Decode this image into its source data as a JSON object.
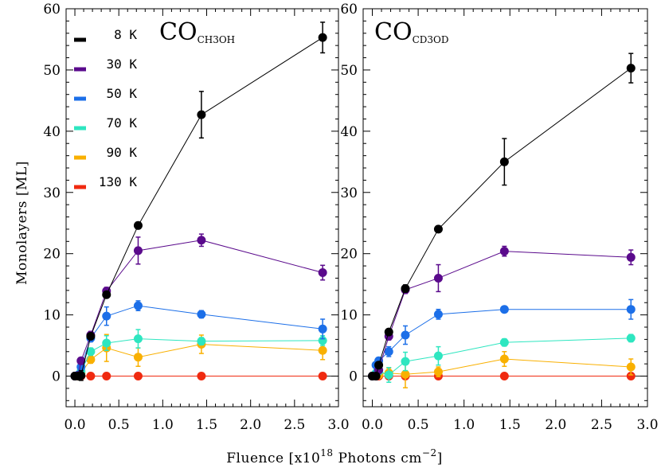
{
  "chart_data": [
    {
      "type": "line",
      "title": "CO",
      "title_subscript": "CH3OH",
      "xlabel": "Fluence [x10",
      "xlabel_sup": "18",
      "xlabel_after": " Photons cm",
      "xlabel_sup2": "−2",
      "xlabel_end": "]",
      "ylabel": "Monolayers [ML]",
      "xlim": [
        -0.1,
        3.0
      ],
      "ylim": [
        -5,
        60
      ],
      "xticks": [
        "0.0",
        "0.5",
        "1.0",
        "1.5",
        "2.0",
        "2.5",
        "3.0"
      ],
      "yticks": [
        "0",
        "10",
        "20",
        "30",
        "40",
        "50",
        "60"
      ],
      "legend_position": "top-left",
      "series": [
        {
          "name": "8 K",
          "color": "#000000",
          "x": [
            0.0,
            0.04,
            0.07,
            0.18,
            0.36,
            0.72,
            1.44,
            2.82
          ],
          "y": [
            0.0,
            0.0,
            0.1,
            6.5,
            13.3,
            24.6,
            42.7,
            55.3
          ],
          "err": [
            0.3,
            0.5,
            0.8,
            0.5,
            0.5,
            0.5,
            3.8,
            2.5
          ]
        },
        {
          "name": "30 K",
          "color": "#5a0a8c",
          "x": [
            0.0,
            0.04,
            0.07,
            0.18,
            0.36,
            0.72,
            1.44,
            2.82
          ],
          "y": [
            0.0,
            0.1,
            2.5,
            6.7,
            13.9,
            20.5,
            22.2,
            16.9
          ],
          "err": [
            0.3,
            0.3,
            0.5,
            0.6,
            0.6,
            2.2,
            1.0,
            1.2
          ]
        },
        {
          "name": "50 K",
          "color": "#1c6fe8",
          "x": [
            0.0,
            0.04,
            0.07,
            0.18,
            0.36,
            0.72,
            1.44,
            2.82
          ],
          "y": [
            0.0,
            0.2,
            1.5,
            6.2,
            9.8,
            11.5,
            10.1,
            7.7
          ],
          "err": [
            0.3,
            0.3,
            0.5,
            0.6,
            1.5,
            0.8,
            0.6,
            1.6
          ]
        },
        {
          "name": "70 K",
          "color": "#2ee6c0",
          "x": [
            0.0,
            0.04,
            0.07,
            0.18,
            0.36,
            0.72,
            1.44,
            2.82
          ],
          "y": [
            0.0,
            0.1,
            0.8,
            4.0,
            5.4,
            6.1,
            5.7,
            5.8
          ],
          "err": [
            0.3,
            0.3,
            0.5,
            0.6,
            1.2,
            1.5,
            0.6,
            0.8
          ]
        },
        {
          "name": "90 K",
          "color": "#f9b000",
          "x": [
            0.0,
            0.04,
            0.07,
            0.18,
            0.36,
            0.72,
            1.44,
            2.82
          ],
          "y": [
            0.0,
            0.0,
            0.5,
            2.7,
            4.6,
            3.1,
            5.2,
            4.2
          ],
          "err": [
            0.3,
            0.3,
            0.5,
            0.6,
            2.2,
            1.5,
            1.5,
            1.5
          ]
        },
        {
          "name": "130 K",
          "color": "#f02a10",
          "x": [
            0.0,
            0.04,
            0.07,
            0.18,
            0.36,
            0.72,
            1.44,
            2.82
          ],
          "y": [
            0.0,
            0.0,
            0.0,
            0.0,
            0.0,
            0.0,
            0.0,
            0.0
          ],
          "err": [
            0.2,
            0.2,
            0.2,
            0.2,
            0.2,
            0.2,
            0.2,
            0.2
          ]
        }
      ]
    },
    {
      "type": "line",
      "title": "CO",
      "title_subscript": "CD3OD",
      "xlim": [
        -0.1,
        3.0
      ],
      "ylim": [
        -5,
        60
      ],
      "xticks": [
        "0.0",
        "0.5",
        "1.0",
        "1.5",
        "2.0",
        "2.5",
        "3.0"
      ],
      "yticks": [
        "0",
        "10",
        "20",
        "30",
        "40",
        "50",
        "60"
      ],
      "series": [
        {
          "name": "8 K",
          "color": "#000000",
          "x": [
            0.0,
            0.04,
            0.07,
            0.18,
            0.36,
            0.72,
            1.44,
            2.82
          ],
          "y": [
            0.0,
            0.0,
            1.8,
            7.2,
            14.3,
            24.0,
            35.0,
            50.3
          ],
          "err": [
            0.3,
            0.3,
            0.5,
            0.5,
            0.6,
            0.5,
            3.8,
            2.4
          ]
        },
        {
          "name": "30 K",
          "color": "#5a0a8c",
          "x": [
            0.0,
            0.04,
            0.07,
            0.18,
            0.36,
            0.72,
            1.44,
            2.82
          ],
          "y": [
            0.0,
            0.0,
            1.0,
            6.5,
            14.1,
            16.0,
            20.4,
            19.4
          ],
          "err": [
            0.3,
            0.3,
            0.5,
            0.6,
            0.6,
            2.2,
            0.8,
            1.2
          ]
        },
        {
          "name": "50 K",
          "color": "#1c6fe8",
          "x": [
            0.0,
            0.04,
            0.07,
            0.18,
            0.36,
            0.72,
            1.44,
            2.82
          ],
          "y": [
            0.0,
            1.8,
            2.5,
            4.0,
            6.7,
            10.1,
            10.9,
            10.9
          ],
          "err": [
            0.3,
            0.4,
            0.5,
            0.8,
            1.5,
            0.8,
            0.5,
            1.6
          ]
        },
        {
          "name": "70 K",
          "color": "#2ee6c0",
          "x": [
            0.0,
            0.04,
            0.07,
            0.18,
            0.36,
            0.72,
            1.44,
            2.82
          ],
          "y": [
            0.0,
            0.5,
            0.8,
            0.2,
            2.4,
            3.3,
            5.5,
            6.2
          ],
          "err": [
            0.3,
            0.3,
            0.5,
            1.2,
            1.5,
            1.5,
            0.6,
            0.6
          ]
        },
        {
          "name": "90 K",
          "color": "#f9b000",
          "x": [
            0.0,
            0.04,
            0.07,
            0.18,
            0.36,
            0.72,
            1.44,
            2.82
          ],
          "y": [
            0.0,
            0.2,
            0.2,
            0.5,
            0.3,
            0.7,
            2.8,
            1.5
          ],
          "err": [
            0.3,
            0.3,
            0.5,
            0.8,
            2.2,
            0.8,
            1.2,
            1.3
          ]
        },
        {
          "name": "130 K",
          "color": "#f02a10",
          "x": [
            0.0,
            0.04,
            0.07,
            0.18,
            0.36,
            0.72,
            1.44,
            2.82
          ],
          "y": [
            0.0,
            0.0,
            0.0,
            0.0,
            0.0,
            0.0,
            0.0,
            0.0
          ],
          "err": [
            0.2,
            0.2,
            0.2,
            0.2,
            0.2,
            0.2,
            0.2,
            0.2
          ]
        }
      ]
    }
  ]
}
